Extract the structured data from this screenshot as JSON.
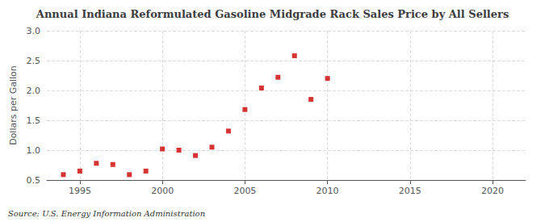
{
  "chart_data": {
    "type": "scatter",
    "title": "Annual Indiana Reformulated Gasoline Midgrade Rack Sales Price by All Sellers",
    "ylabel": "Dollars per Gallon",
    "source": "Source: U.S. Energy Information Administration",
    "x": [
      1994,
      1995,
      1996,
      1997,
      1998,
      1999,
      2000,
      2001,
      2002,
      2003,
      2004,
      2005,
      2006,
      2007,
      2008,
      2009,
      2010
    ],
    "values": [
      0.59,
      0.65,
      0.78,
      0.76,
      0.59,
      0.65,
      1.02,
      1.0,
      0.91,
      1.05,
      1.32,
      1.68,
      2.04,
      2.22,
      2.58,
      1.85,
      2.2
    ],
    "color": "#cc0000",
    "marker": "square",
    "xlim": [
      1993,
      2022
    ],
    "ylim": [
      0.5,
      3.0
    ],
    "xticks": [
      1995,
      2000,
      2005,
      2010,
      2015,
      2020
    ],
    "yticks": [
      0.5,
      {
        "value": 1.0,
        "label": "1.0"
      },
      1.5,
      {
        "value": 2.0,
        "label": "2.0"
      },
      2.5,
      {
        "value": 3.0,
        "label": "3.0"
      }
    ],
    "grid": true
  }
}
